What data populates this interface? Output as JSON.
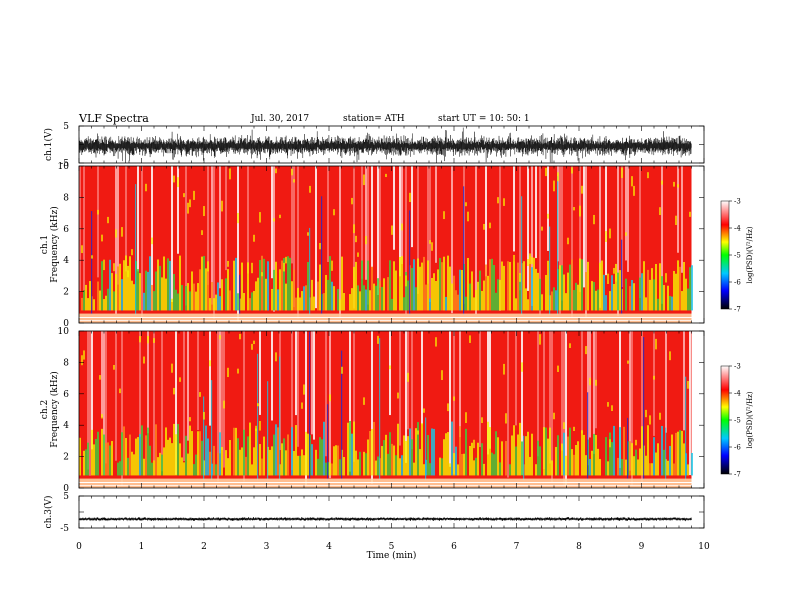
{
  "header": {
    "title": "VLF  Spectra",
    "date": "Jul.  30, 2017",
    "station": "station= ATH",
    "start_ut": "start  UT  =     10: 50: 1"
  },
  "chart_data": [
    {
      "type": "line",
      "name": "ch1-waveform",
      "ylabel": "ch.1(V)",
      "ylim": [
        -5,
        5
      ],
      "yticks": [
        "5",
        "-5"
      ],
      "xlim": [
        0,
        10
      ],
      "amplitude_typical": 2.3,
      "offset": -0.4
    },
    {
      "type": "heatmap",
      "name": "ch1-spectrogram",
      "ylabel": [
        "ch.1",
        "Frequency  (kHz)"
      ],
      "ylim": [
        0,
        10
      ],
      "yticks": [
        "0",
        "2",
        "4",
        "6",
        "8",
        "10"
      ],
      "xlim": [
        0,
        10
      ],
      "data_end_min": 9.8,
      "colorbar": {
        "label": "log(PSD)(V²/Hz)",
        "range": [
          -7,
          -3
        ],
        "ticks": [
          "-3",
          "-4",
          "-5",
          "-6",
          "-7"
        ],
        "colors": [
          "#000000",
          "#0000ff",
          "#00c8ff",
          "#00ff00",
          "#ffff00",
          "#ff0000",
          "#ffffff"
        ]
      }
    },
    {
      "type": "heatmap",
      "name": "ch2-spectrogram",
      "ylabel": [
        "ch.2",
        "Frequency  (kHz)"
      ],
      "ylim": [
        0,
        10
      ],
      "yticks": [
        "0",
        "2",
        "4",
        "6",
        "8",
        "10"
      ],
      "xlim": [
        0,
        10
      ],
      "data_end_min": 9.8,
      "colorbar": {
        "label": "log(PSD)(V²/Hz)",
        "range": [
          -7,
          -3
        ],
        "ticks": [
          "-3",
          "-4",
          "-5",
          "-6",
          "-7"
        ],
        "colors": [
          "#000000",
          "#0000ff",
          "#00c8ff",
          "#00ff00",
          "#ffff00",
          "#ff0000",
          "#ffffff"
        ]
      }
    },
    {
      "type": "line",
      "name": "ch3-waveform",
      "ylabel": "ch.3(V)",
      "ylim": [
        -5,
        5
      ],
      "yticks": [
        "5",
        "-5"
      ],
      "xlim": [
        0,
        10
      ],
      "xticks": [
        "0",
        "1",
        "2",
        "3",
        "4",
        "5",
        "6",
        "7",
        "8",
        "9",
        "10"
      ],
      "xlabel": "Time  (min)",
      "amplitude_typical": 0.5,
      "offset": -2.2
    }
  ]
}
